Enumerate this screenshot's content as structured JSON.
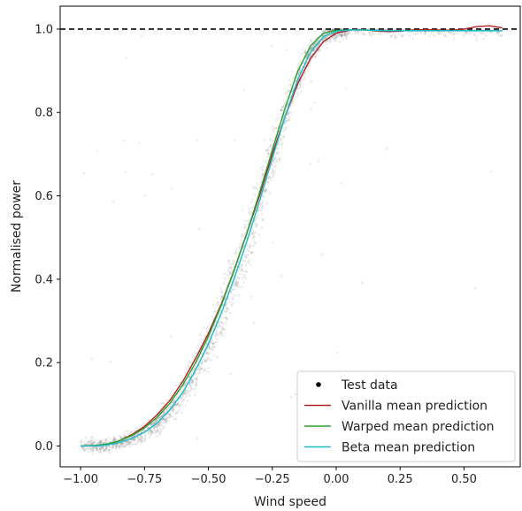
{
  "chart_data": {
    "type": "scatter",
    "title": "",
    "xlabel": "Wind speed",
    "ylabel": "Normalised power",
    "xlim": [
      -1.08,
      0.72
    ],
    "ylim": [
      -0.05,
      1.055
    ],
    "xticks": [
      -1.0,
      -0.75,
      -0.5,
      -0.25,
      0.0,
      0.25,
      0.5
    ],
    "xtick_labels": [
      "−1.00",
      "−0.75",
      "−0.50",
      "−0.25",
      "0.00",
      "0.25",
      "0.50"
    ],
    "yticks": [
      0.0,
      0.2,
      0.4,
      0.6,
      0.8,
      1.0
    ],
    "ytick_labels": [
      "0.0",
      "0.2",
      "0.4",
      "0.6",
      "0.8",
      "1.0"
    ],
    "reference_line": {
      "y": 1.0,
      "style": "dashed",
      "color": "#000000"
    },
    "legend": {
      "position": "lower-right",
      "entries": [
        {
          "label": "Test data",
          "kind": "dot",
          "color": "#000000"
        },
        {
          "label": "Vanilla mean prediction",
          "kind": "line",
          "color": "#b22222"
        },
        {
          "label": "Warped mean prediction",
          "kind": "line",
          "color": "#2ca02c"
        },
        {
          "label": "Beta mean prediction",
          "kind": "line",
          "color": "#17becf"
        }
      ]
    },
    "scatter_color": "#8c8c8c",
    "series": [
      {
        "name": "Vanilla mean prediction",
        "color": "#b22222",
        "x": [
          -1.0,
          -0.95,
          -0.9,
          -0.85,
          -0.8,
          -0.75,
          -0.7,
          -0.65,
          -0.6,
          -0.55,
          -0.5,
          -0.45,
          -0.4,
          -0.35,
          -0.3,
          -0.25,
          -0.2,
          -0.15,
          -0.1,
          -0.05,
          0.0,
          0.05,
          0.1,
          0.15,
          0.2,
          0.25,
          0.3,
          0.35,
          0.4,
          0.45,
          0.5,
          0.55,
          0.6,
          0.65
        ],
        "y": [
          0.0,
          0.0,
          0.003,
          0.012,
          0.027,
          0.047,
          0.075,
          0.11,
          0.155,
          0.21,
          0.27,
          0.34,
          0.42,
          0.51,
          0.6,
          0.7,
          0.79,
          0.87,
          0.93,
          0.97,
          0.99,
          0.998,
          0.999,
          0.996,
          0.994,
          0.995,
          0.998,
          0.999,
          0.998,
          0.997,
          1.0,
          1.006,
          1.008,
          1.003
        ]
      },
      {
        "name": "Warped mean prediction",
        "color": "#2ca02c",
        "x": [
          -1.0,
          -0.95,
          -0.9,
          -0.85,
          -0.8,
          -0.75,
          -0.7,
          -0.65,
          -0.6,
          -0.55,
          -0.5,
          -0.45,
          -0.4,
          -0.35,
          -0.3,
          -0.25,
          -0.2,
          -0.15,
          -0.1,
          -0.05,
          0.0,
          0.05,
          0.1,
          0.15,
          0.2,
          0.25,
          0.3,
          0.35,
          0.4,
          0.45,
          0.5,
          0.55,
          0.6,
          0.65
        ],
        "y": [
          0.0,
          0.001,
          0.004,
          0.012,
          0.025,
          0.043,
          0.069,
          0.103,
          0.147,
          0.2,
          0.263,
          0.337,
          0.42,
          0.51,
          0.607,
          0.71,
          0.81,
          0.9,
          0.96,
          0.99,
          0.997,
          0.998,
          0.998,
          0.997,
          0.996,
          0.996,
          0.996,
          0.996,
          0.996,
          0.996,
          0.996,
          0.996,
          0.996,
          0.996
        ]
      },
      {
        "name": "Beta mean prediction",
        "color": "#17becf",
        "x": [
          -1.0,
          -0.95,
          -0.9,
          -0.85,
          -0.8,
          -0.75,
          -0.7,
          -0.65,
          -0.6,
          -0.55,
          -0.5,
          -0.45,
          -0.4,
          -0.35,
          -0.3,
          -0.25,
          -0.2,
          -0.15,
          -0.1,
          -0.05,
          0.0,
          0.05,
          0.1,
          0.15,
          0.2,
          0.25,
          0.3,
          0.35,
          0.4,
          0.45,
          0.5,
          0.55,
          0.6,
          0.65
        ],
        "y": [
          0.0,
          0.0,
          0.002,
          0.008,
          0.018,
          0.033,
          0.055,
          0.087,
          0.129,
          0.182,
          0.245,
          0.318,
          0.4,
          0.49,
          0.587,
          0.69,
          0.79,
          0.88,
          0.945,
          0.982,
          0.995,
          0.998,
          0.998,
          0.997,
          0.996,
          0.996,
          0.996,
          0.996,
          0.996,
          0.996,
          0.996,
          0.996,
          0.996,
          0.996
        ]
      }
    ]
  }
}
